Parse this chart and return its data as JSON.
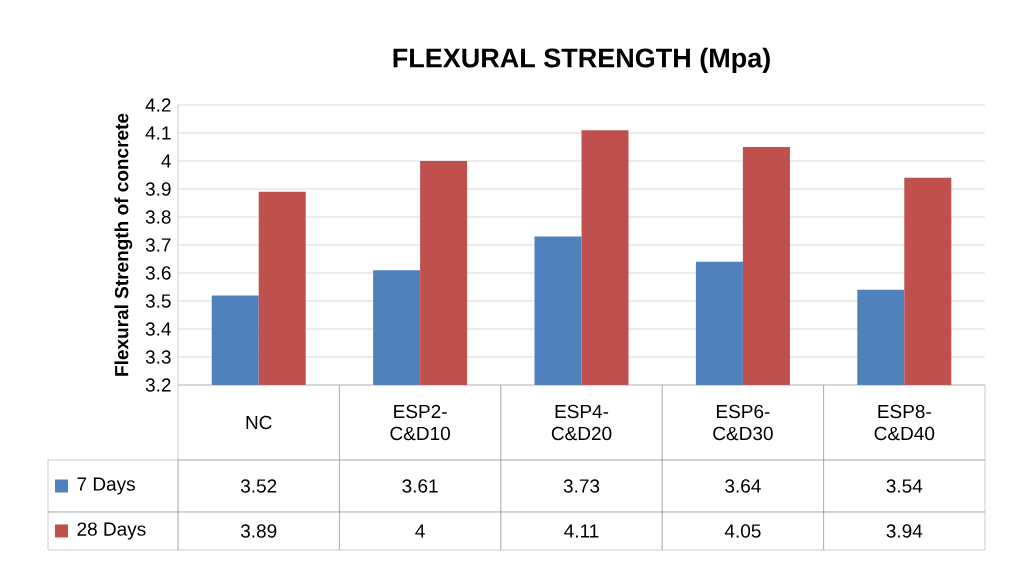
{
  "chart_data": {
    "type": "bar",
    "title": "FLEXURAL STRENGTH (Mpa)",
    "ylabel": "Flexural Strength of concrete",
    "categories": [
      "NC",
      "ESP2-C&D10",
      "ESP4-C&D20",
      "ESP6-C&D30",
      "ESP8-C&D40"
    ],
    "series": [
      {
        "name": "7 Days",
        "color": "#4f81bd",
        "values": [
          3.52,
          3.61,
          3.73,
          3.64,
          3.54
        ]
      },
      {
        "name": "28 Days",
        "color": "#c0504d",
        "values": [
          3.89,
          4,
          4.11,
          4.05,
          3.94
        ]
      }
    ],
    "ylim": [
      3.2,
      4.2
    ],
    "yticks": [
      3.2,
      3.3,
      3.4,
      3.5,
      3.6,
      3.7,
      3.8,
      3.9,
      4,
      4.1,
      4.2
    ],
    "grid": "y",
    "legend": "bottom",
    "data_labels": true
  }
}
